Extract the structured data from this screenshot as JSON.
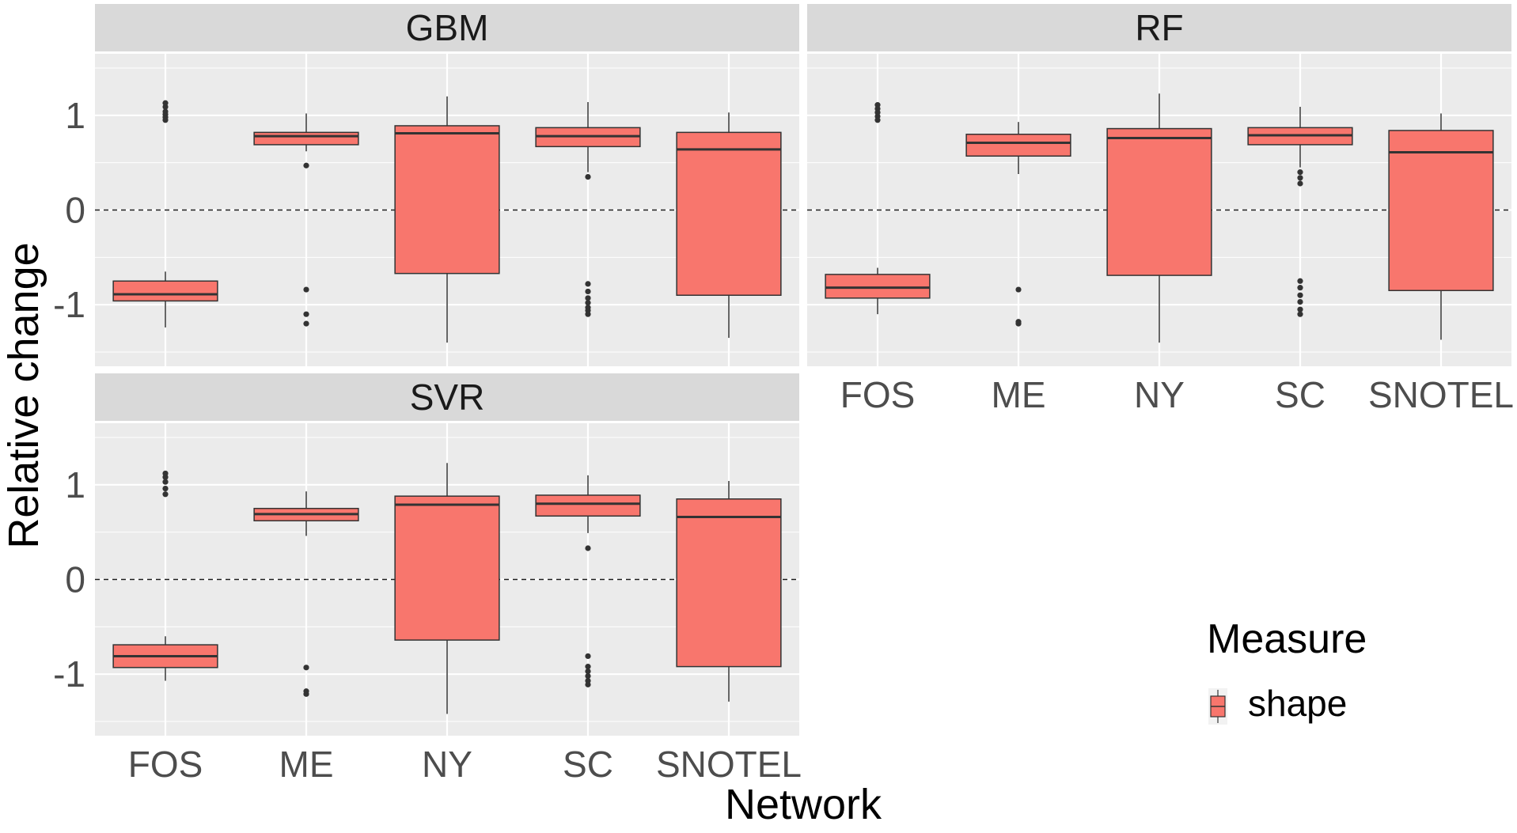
{
  "chart_data": {
    "type": "boxplot",
    "xlabel": "Network",
    "ylabel": "Relative change",
    "categories": [
      "FOS",
      "ME",
      "NY",
      "SC",
      "SNOTEL"
    ],
    "ylim": [
      -1.65,
      1.65
    ],
    "yticks": [
      -1,
      0,
      1
    ],
    "ytick_labels": [
      "-1",
      "0",
      "1"
    ],
    "reference_line": 0,
    "grid": true,
    "legend": {
      "title": "Measure",
      "entries": [
        "shape"
      ],
      "position": "bottom-right"
    },
    "colors": {
      "fill": "#F8766D",
      "outline": "#333333",
      "panel_bg": "#EBEBEB",
      "strip_bg": "#D9D9D9",
      "grid": "#FFFFFF"
    },
    "panels": [
      {
        "title": "GBM",
        "boxes": [
          {
            "category": "FOS",
            "whisker_low": -1.24,
            "q1": -0.96,
            "median": -0.89,
            "q3": -0.75,
            "whisker_high": -0.65,
            "outliers": [
              0.95,
              0.98,
              1.01,
              1.04,
              1.09,
              1.13
            ]
          },
          {
            "category": "ME",
            "whisker_low": 0.62,
            "q1": 0.69,
            "median": 0.78,
            "q3": 0.82,
            "whisker_high": 1.02,
            "outliers": [
              0.47,
              -0.84,
              -1.1,
              -1.2
            ]
          },
          {
            "category": "NY",
            "whisker_low": -1.4,
            "q1": -0.67,
            "median": 0.81,
            "q3": 0.89,
            "whisker_high": 1.2,
            "outliers": []
          },
          {
            "category": "SC",
            "whisker_low": 0.4,
            "q1": 0.67,
            "median": 0.78,
            "q3": 0.87,
            "whisker_high": 1.14,
            "outliers": [
              0.35,
              -0.78,
              -0.86,
              -0.93,
              -0.98,
              -1.03,
              -1.06,
              -1.1
            ]
          },
          {
            "category": "SNOTEL",
            "whisker_low": -1.35,
            "q1": -0.9,
            "median": 0.64,
            "q3": 0.82,
            "whisker_high": 1.03,
            "outliers": []
          }
        ]
      },
      {
        "title": "RF",
        "boxes": [
          {
            "category": "FOS",
            "whisker_low": -1.1,
            "q1": -0.93,
            "median": -0.82,
            "q3": -0.68,
            "whisker_high": -0.61,
            "outliers": [
              0.95,
              0.99,
              1.03,
              1.07,
              1.11
            ]
          },
          {
            "category": "ME",
            "whisker_low": 0.38,
            "q1": 0.57,
            "median": 0.71,
            "q3": 0.8,
            "whisker_high": 0.93,
            "outliers": [
              -0.84,
              -1.18,
              -1.2
            ]
          },
          {
            "category": "NY",
            "whisker_low": -1.4,
            "q1": -0.69,
            "median": 0.76,
            "q3": 0.86,
            "whisker_high": 1.23,
            "outliers": []
          },
          {
            "category": "SC",
            "whisker_low": 0.45,
            "q1": 0.69,
            "median": 0.79,
            "q3": 0.87,
            "whisker_high": 1.09,
            "outliers": [
              0.4,
              0.34,
              0.28,
              -0.75,
              -0.82,
              -0.9,
              -0.97,
              -1.05,
              -1.1
            ]
          },
          {
            "category": "SNOTEL",
            "whisker_low": -1.37,
            "q1": -0.85,
            "median": 0.61,
            "q3": 0.84,
            "whisker_high": 1.02,
            "outliers": []
          }
        ]
      },
      {
        "title": "SVR",
        "boxes": [
          {
            "category": "FOS",
            "whisker_low": -1.07,
            "q1": -0.93,
            "median": -0.81,
            "q3": -0.69,
            "whisker_high": -0.6,
            "outliers": [
              0.9,
              0.96,
              1.03,
              1.08,
              1.12
            ]
          },
          {
            "category": "ME",
            "whisker_low": 0.46,
            "q1": 0.62,
            "median": 0.69,
            "q3": 0.75,
            "whisker_high": 0.93,
            "outliers": [
              -0.93,
              -1.18,
              -1.21
            ]
          },
          {
            "category": "NY",
            "whisker_low": -1.42,
            "q1": -0.64,
            "median": 0.79,
            "q3": 0.88,
            "whisker_high": 1.23,
            "outliers": []
          },
          {
            "category": "SC",
            "whisker_low": 0.49,
            "q1": 0.67,
            "median": 0.8,
            "q3": 0.89,
            "whisker_high": 1.1,
            "outliers": [
              0.33,
              -0.81,
              -0.92,
              -0.97,
              -1.02,
              -1.07,
              -1.11
            ]
          },
          {
            "category": "SNOTEL",
            "whisker_low": -1.29,
            "q1": -0.92,
            "median": 0.66,
            "q3": 0.85,
            "whisker_high": 1.04,
            "outliers": []
          }
        ]
      }
    ]
  }
}
